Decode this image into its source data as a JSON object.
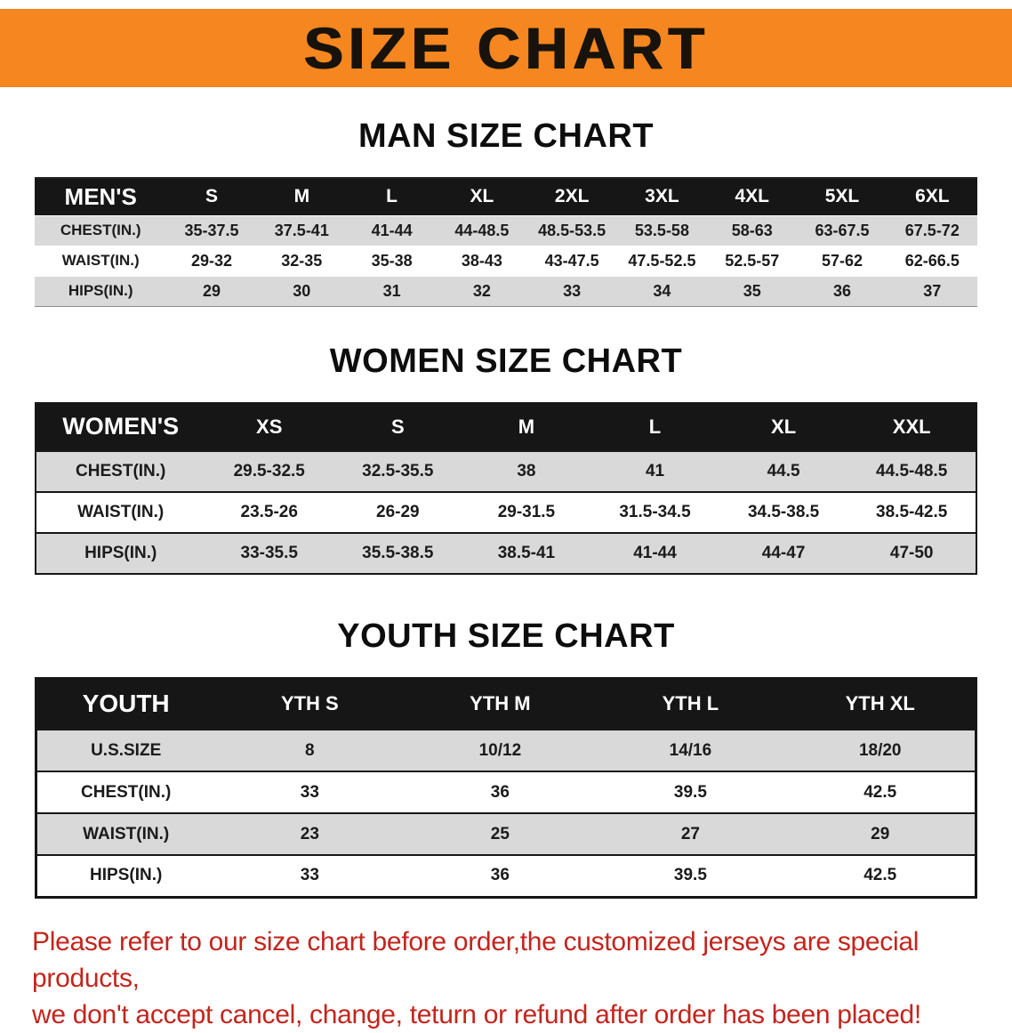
{
  "banner": {
    "title": "SIZE CHART"
  },
  "sections": [
    {
      "heading": "MAN SIZE CHART",
      "table": {
        "header": [
          "MEN'S",
          "S",
          "M",
          "L",
          "XL",
          "2XL",
          "3XL",
          "4XL",
          "5XL",
          "6XL"
        ],
        "rows": [
          [
            "CHEST(IN.)",
            "35-37.5",
            "37.5-41",
            "41-44",
            "44-48.5",
            "48.5-53.5",
            "53.5-58",
            "58-63",
            "63-67.5",
            "67.5-72"
          ],
          [
            "WAIST(IN.)",
            "29-32",
            "32-35",
            "35-38",
            "38-43",
            "43-47.5",
            "47.5-52.5",
            "52.5-57",
            "57-62",
            "62-66.5"
          ],
          [
            "HIPS(IN.)",
            "29",
            "30",
            "31",
            "32",
            "33",
            "34",
            "35",
            "36",
            "37"
          ]
        ]
      }
    },
    {
      "heading": "WOMEN SIZE CHART",
      "table": {
        "header": [
          "WOMEN'S",
          "XS",
          "S",
          "M",
          "L",
          "XL",
          "XXL"
        ],
        "rows": [
          [
            "CHEST(IN.)",
            "29.5-32.5",
            "32.5-35.5",
            "38",
            "41",
            "44.5",
            "44.5-48.5"
          ],
          [
            "WAIST(IN.)",
            "23.5-26",
            "26-29",
            "29-31.5",
            "31.5-34.5",
            "34.5-38.5",
            "38.5-42.5"
          ],
          [
            "HIPS(IN.)",
            "33-35.5",
            "35.5-38.5",
            "38.5-41",
            "41-44",
            "44-47",
            "47-50"
          ]
        ]
      }
    },
    {
      "heading": "YOUTH SIZE CHART",
      "table": {
        "header": [
          "YOUTH",
          "YTH S",
          "YTH M",
          "YTH L",
          "YTH XL"
        ],
        "rows": [
          [
            "U.S.SIZE",
            "8",
            "10/12",
            "14/16",
            "18/20"
          ],
          [
            "CHEST(IN.)",
            "33",
            "36",
            "39.5",
            "42.5"
          ],
          [
            "WAIST(IN.)",
            "23",
            "25",
            "27",
            "29"
          ],
          [
            "HIPS(IN.)",
            "33",
            "36",
            "39.5",
            "42.5"
          ]
        ]
      }
    }
  ],
  "disclaimer": {
    "lines": [
      "Please refer to our size chart before order,the customized jerseys are special products,",
      "we don't accept cancel, change, teturn or refund after order has been placed!"
    ]
  },
  "colors": {
    "banner_bg": "#f6861f",
    "table_header_bg": "#161616",
    "row_stripe": "#d9d9d9",
    "disclaimer_text": "#c2251d"
  }
}
